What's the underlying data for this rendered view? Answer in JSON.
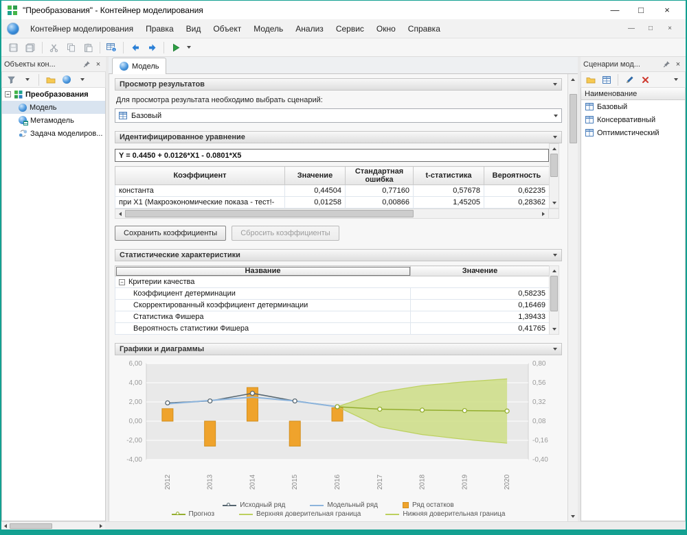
{
  "glyphs": {
    "minimize": "—",
    "maximize": "□",
    "close": "×",
    "minus": "−"
  },
  "window": {
    "title": "\"Преобразования\" - Контейнер моделирования"
  },
  "menu": {
    "items": [
      "Контейнер моделирования",
      "Правка",
      "Вид",
      "Объект",
      "Модель",
      "Анализ",
      "Сервис",
      "Окно",
      "Справка"
    ]
  },
  "left_panel": {
    "title": "Объекты кон...",
    "tree": {
      "root": "Преобразования",
      "items": [
        "Модель",
        "Метамодель",
        "Задача моделиров..."
      ]
    }
  },
  "tabs": [
    {
      "label": "Модель"
    }
  ],
  "sections": {
    "results": {
      "title": "Просмотр результатов",
      "hint": "Для просмотра результата необходимо выбрать сценарий:",
      "scenario": "Базовый"
    },
    "equation": {
      "title": "Идентифицированное уравнение",
      "formula": "Y = 0.4450 + 0.0126*X1 - 0.0801*X5",
      "headers": [
        "Коэффициент",
        "Значение",
        "Стандартная ошибка",
        "t-статистика",
        "Вероятность"
      ],
      "rows": [
        [
          "константа",
          "0,44504",
          "0,77160",
          "0,57678",
          "0,62235"
        ],
        [
          "при X1 (Макроэкономические показа - тест!-",
          "0,01258",
          "0,00866",
          "1,45205",
          "0,28362"
        ]
      ],
      "save_button": "Сохранить коэффициенты",
      "reset_button": "Сбросить коэффициенты"
    },
    "stats": {
      "title": "Статистические характеристики",
      "headers": [
        "Название",
        "Значение"
      ],
      "group": "Критерии качества",
      "rows": [
        [
          "Коэффициент детерминации",
          "0,58235"
        ],
        [
          "Скорректированный коэффициент детерминации",
          "0,16469"
        ],
        [
          "Статистика Фишера",
          "1,39433"
        ],
        [
          "Вероятность статистики Фишера",
          "0,41765"
        ]
      ]
    },
    "charts": {
      "title": "Графики и диаграммы"
    }
  },
  "right_panel": {
    "title": "Сценарии мод...",
    "column_header": "Наименование",
    "items": [
      "Базовый",
      "Консервативный",
      "Оптимистический"
    ]
  },
  "chart_data": {
    "type": "bar+line+area",
    "x": [
      "2012",
      "2013",
      "2014",
      "2015",
      "2016",
      "2017",
      "2018",
      "2019",
      "2020"
    ],
    "left_axis": {
      "min": -4,
      "max": 6,
      "tick_values": [
        6,
        4,
        2,
        0,
        -2,
        -4
      ],
      "tick_labels": [
        "6,00",
        "4,00",
        "2,00",
        "0,00",
        "-2,00",
        "-4,00"
      ]
    },
    "right_axis": {
      "min": -0.4,
      "max": 0.8,
      "tick_labels": [
        "0,80",
        "0,56",
        "0,32",
        "0,08",
        "-0,16",
        "-0,40"
      ]
    },
    "band_fill": "#cede86",
    "series": [
      {
        "name": "Исходный ряд",
        "type": "line",
        "legend": "line-circle",
        "marker": "circle",
        "color": "#55656f",
        "width": 1.6,
        "values": [
          1.9,
          2.1,
          2.9,
          2.1,
          1.5,
          null,
          null,
          null,
          null
        ]
      },
      {
        "name": "Модельный ряд",
        "type": "line",
        "legend": "line",
        "color": "#8cb4dc",
        "width": 2,
        "values": [
          1.8,
          2.15,
          2.5,
          2.1,
          1.5,
          null,
          null,
          null,
          null
        ]
      },
      {
        "name": "Ряд остатков",
        "type": "bar",
        "legend": "square",
        "color": "#efa32c",
        "border": "#d28f1e",
        "values": [
          1.3,
          -2.6,
          3.5,
          -2.6,
          1.4,
          null,
          null,
          null,
          null
        ]
      },
      {
        "name": "Прогноз",
        "type": "line",
        "legend": "line-circle",
        "marker": "circle",
        "color": "#94ae2f",
        "width": 1.5,
        "values": [
          null,
          null,
          null,
          null,
          1.5,
          1.25,
          1.15,
          1.1,
          1.05
        ]
      },
      {
        "name": "Верхняя доверительная граница",
        "type": "line",
        "legend": "line",
        "band": "upper",
        "color": "#bcd05e",
        "width": 1.2,
        "values": [
          null,
          null,
          null,
          null,
          1.5,
          3.0,
          3.7,
          4.1,
          4.4
        ]
      },
      {
        "name": "Нижняя доверительная граница",
        "type": "line",
        "legend": "line",
        "band": "lower",
        "color": "#bcd05e",
        "width": 1.2,
        "values": [
          null,
          null,
          null,
          null,
          1.5,
          -0.6,
          -1.4,
          -1.9,
          -2.3
        ]
      }
    ]
  }
}
